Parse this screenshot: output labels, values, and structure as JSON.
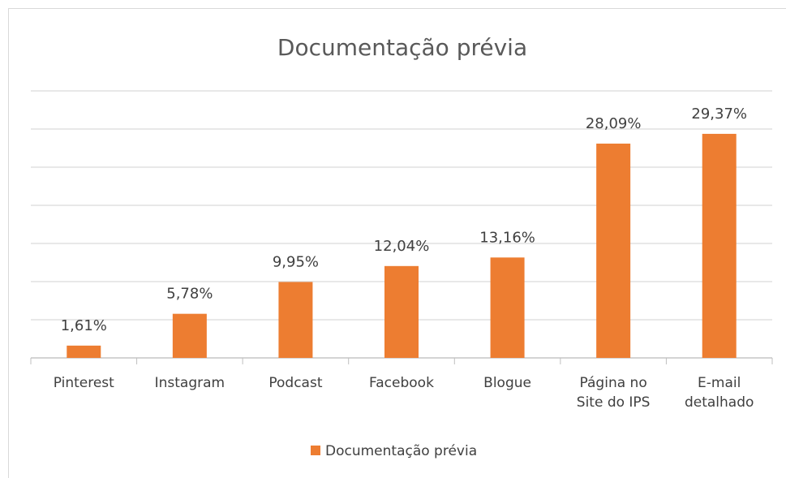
{
  "chart_data": {
    "type": "bar",
    "title": "Documentação prévia",
    "categories": [
      "Pinterest",
      "Instagram",
      "Podcast",
      "Facebook",
      "Blogue",
      "Página no\nSite do IPS",
      "E-mail\ndetalhado"
    ],
    "series": [
      {
        "name": "Documentação prévia",
        "color": "#ED7D31",
        "values": [
          1.61,
          5.78,
          9.95,
          12.04,
          13.16,
          28.09,
          29.37
        ],
        "value_labels": [
          "1,61%",
          "5,78%",
          "9,95%",
          "12,04%",
          "13,16%",
          "28,09%",
          "29,37%"
        ]
      }
    ],
    "ylim": [
      0,
      35
    ],
    "yticks": [
      0,
      5,
      10,
      15,
      20,
      25,
      30,
      35
    ],
    "grid": true,
    "legend": "bottom"
  }
}
